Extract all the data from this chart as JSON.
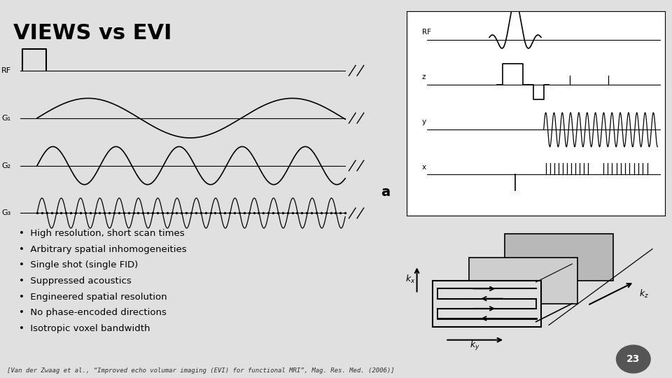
{
  "title": "VIEWS vs EVI",
  "background_color": "#e0e0e0",
  "title_color": "#000000",
  "title_fontsize": 22,
  "title_fontweight": "bold",
  "bullet_points": [
    "High resolution, short scan times",
    "Arbitrary spatial inhomogeneities",
    "Single shot (single FID)",
    "Suppressed acoustics",
    "Engineered spatial resolution",
    "No phase-encoded directions",
    "Isotropic voxel bandwidth"
  ],
  "footnote": "[Van der Zwaag et al., “Improved echo volumar imaging (EVI) for functional MRI”, Mag. Res. Med. (2006)]",
  "page_number": "23",
  "waveform_labels": [
    "RF",
    "G₁",
    "G₂",
    "G₃"
  ],
  "right_panel_label_a": "a",
  "right_panel_labels": [
    "RF",
    "z",
    "y",
    "x"
  ]
}
